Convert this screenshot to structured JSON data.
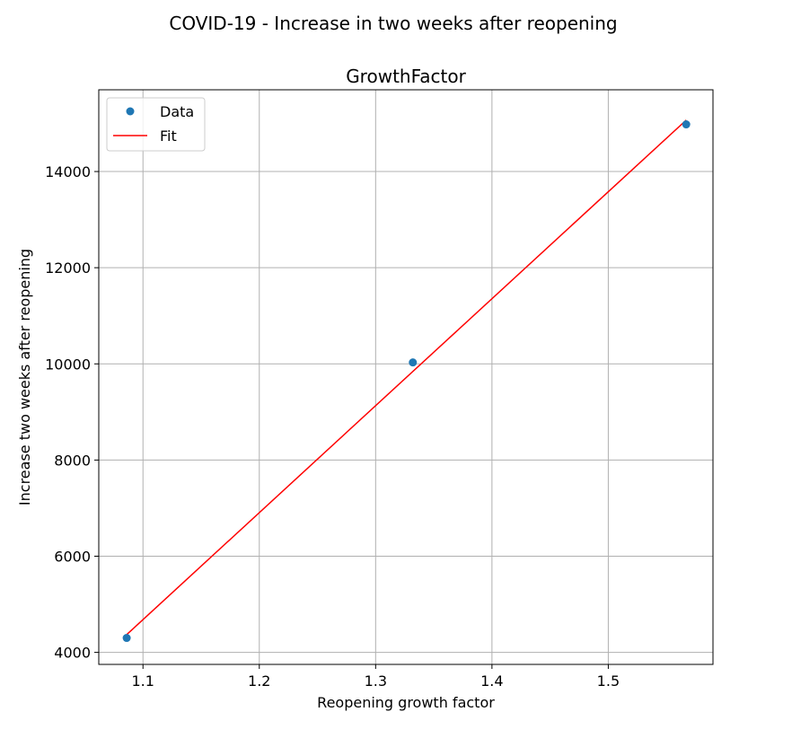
{
  "figure_title": "COVID-19 - Increase in two weeks after reopening",
  "chart_data": {
    "type": "scatter",
    "title": "GrowthFactor",
    "xlabel": "Reopening growth factor",
    "ylabel": "Increase two weeks after reopening",
    "xlim": [
      1.062,
      1.59
    ],
    "ylim": [
      3750,
      15700
    ],
    "xticks": [
      1.1,
      1.2,
      1.3,
      1.4,
      1.5
    ],
    "xtick_labels": [
      "1.1",
      "1.2",
      "1.3",
      "1.4",
      "1.5"
    ],
    "yticks": [
      4000,
      6000,
      8000,
      10000,
      12000,
      14000
    ],
    "ytick_labels": [
      "4000",
      "6000",
      "8000",
      "10000",
      "12000",
      "14000"
    ],
    "grid": true,
    "legend_position": "upper left",
    "series": [
      {
        "name": "Data",
        "kind": "points",
        "color": "#1f77b4",
        "x": [
          1.086,
          1.332,
          1.567
        ],
        "y": [
          4300,
          10030,
          14980
        ]
      },
      {
        "name": "Fit",
        "kind": "line",
        "color": "#ff0000",
        "x": [
          1.086,
          1.567
        ],
        "y": [
          4370,
          15070
        ]
      }
    ]
  }
}
